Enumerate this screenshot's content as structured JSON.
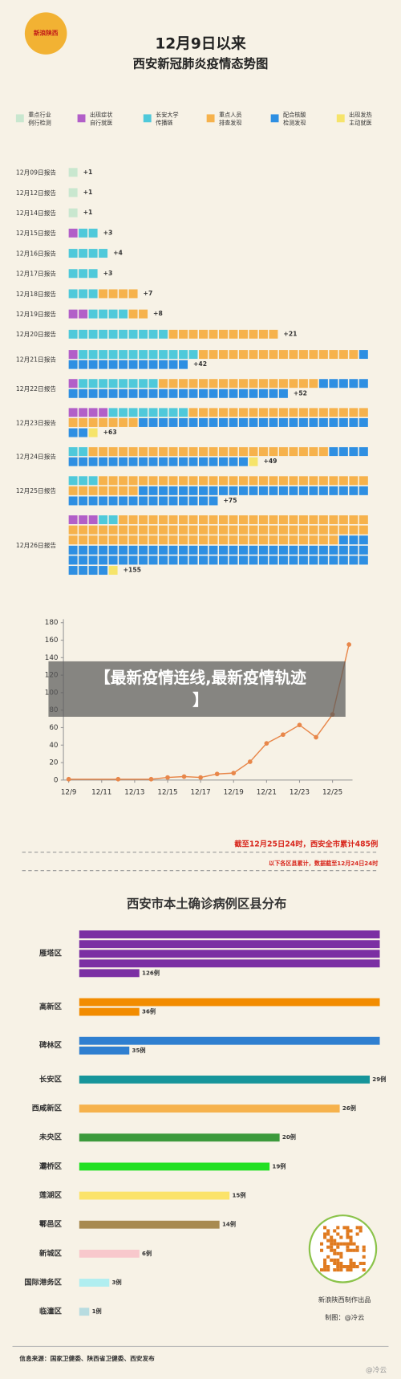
{
  "header": {
    "logo": "新浪陕西",
    "title_lines": [
      "12月9日以来",
      "西安新冠肺炎疫情态势图"
    ]
  },
  "chart_data": [
    {
      "type": "waffle",
      "categories": [
        "12月09日报告",
        "12月12日报告",
        "12月14日报告",
        "12月15日报告",
        "12月16日报告",
        "12月17日报告",
        "12月18日报告",
        "12月19日报告",
        "12月20日报告",
        "12月21日报告",
        "12月22日报告",
        "12月23日报告",
        "12月24日报告",
        "12月25日报告",
        "12月26日报告"
      ],
      "series": [
        {
          "name": "重点行业例行检测",
          "color": "#c9e7cf",
          "values": [
            1,
            1,
            1,
            0,
            0,
            0,
            0,
            0,
            0,
            0,
            0,
            0,
            0,
            0,
            0
          ]
        },
        {
          "name": "出现症状自行就医",
          "color": "#b25fc8",
          "values": [
            0,
            0,
            0,
            1,
            0,
            0,
            0,
            2,
            0,
            1,
            1,
            4,
            0,
            0,
            3
          ]
        },
        {
          "name": "长安大学传播链",
          "color": "#4fc9da",
          "values": [
            0,
            0,
            0,
            2,
            4,
            3,
            3,
            4,
            10,
            12,
            8,
            8,
            2,
            3,
            2
          ]
        },
        {
          "name": "重点人员排查发现",
          "color": "#f6b24c",
          "values": [
            0,
            0,
            0,
            0,
            0,
            0,
            4,
            2,
            11,
            16,
            16,
            25,
            24,
            34,
            82
          ]
        },
        {
          "name": "配合核酸检测发现",
          "color": "#2e8fe2",
          "values": [
            0,
            0,
            0,
            0,
            0,
            0,
            0,
            0,
            0,
            13,
            27,
            25,
            22,
            38,
            67
          ]
        },
        {
          "name": "出现发热主动就医",
          "color": "#f6e46a",
          "values": [
            0,
            0,
            0,
            0,
            0,
            0,
            0,
            0,
            0,
            0,
            0,
            1,
            1,
            0,
            1
          ]
        }
      ],
      "totals": [
        1,
        1,
        1,
        3,
        4,
        3,
        7,
        8,
        21,
        42,
        52,
        63,
        49,
        75,
        155
      ],
      "total_labels": [
        "+1",
        "+1",
        "+1",
        "+3",
        "+4",
        "+3",
        "+7",
        "+8",
        "+21",
        "+42",
        "+52",
        "+63",
        "+49",
        "+75",
        "+155"
      ]
    },
    {
      "type": "line",
      "color": "#e8874a",
      "x": [
        9,
        12,
        14,
        15,
        16,
        17,
        18,
        19,
        20,
        21,
        22,
        23,
        24,
        25,
        26
      ],
      "values": [
        1,
        1,
        1,
        3,
        4,
        3,
        7,
        8,
        21,
        42,
        52,
        63,
        49,
        75,
        155
      ],
      "xlim": [
        9,
        26
      ],
      "xticks": [
        {
          "value": 9,
          "label": "12/9"
        },
        {
          "value": 11,
          "label": "12/11"
        },
        {
          "value": 13,
          "label": "12/13"
        },
        {
          "value": 15,
          "label": "12/15"
        },
        {
          "value": 17,
          "label": "12/17"
        },
        {
          "value": 19,
          "label": "12/19"
        },
        {
          "value": 21,
          "label": "12/21"
        },
        {
          "value": 23,
          "label": "12/23"
        },
        {
          "value": 25,
          "label": "12/25"
        }
      ],
      "ylim": [
        0,
        180
      ],
      "yticks": [
        0,
        20,
        40,
        60,
        80,
        100,
        120,
        140,
        160,
        180
      ]
    },
    {
      "type": "hbar",
      "title": "西安市本土确诊病例区县分布",
      "categories": [
        "雁塔区",
        "高新区",
        "碑林区",
        "长安区",
        "西咸新区",
        "未央区",
        "灞桥区",
        "莲湖区",
        "鄠邑区",
        "新城区",
        "国际港务区",
        "临潼区"
      ],
      "values": [
        126,
        36,
        35,
        29,
        26,
        20,
        19,
        15,
        14,
        6,
        3,
        1
      ],
      "value_labels": [
        "126例",
        "36例",
        "35例",
        "29例",
        "26例",
        "20例",
        "19例",
        "15例",
        "14例",
        "6例",
        "3例",
        "1例"
      ],
      "colors": [
        "#7b2fa3",
        "#f28c00",
        "#2f7fd0",
        "#16959a",
        "#f6b24c",
        "#3c9a3c",
        "#22e022",
        "#fbe36a",
        "#a88a50",
        "#f8c8cc",
        "#b0eef0",
        "#b8dce0"
      ]
    }
  ],
  "overlay_text": "【最新疫情连线,最新疫情轨迹】",
  "notes": {
    "cumulative": "截至12月25日24时，西安全市累计485例",
    "districts": "以下各区县累计，数据截至12月24日24时"
  },
  "footer": {
    "credit": "新浪陕西制作出品",
    "author": "制图：@冷云",
    "source": "信息来源：国家卫健委、陕西省卫健委、西安发布",
    "watermark": "@冷云"
  }
}
